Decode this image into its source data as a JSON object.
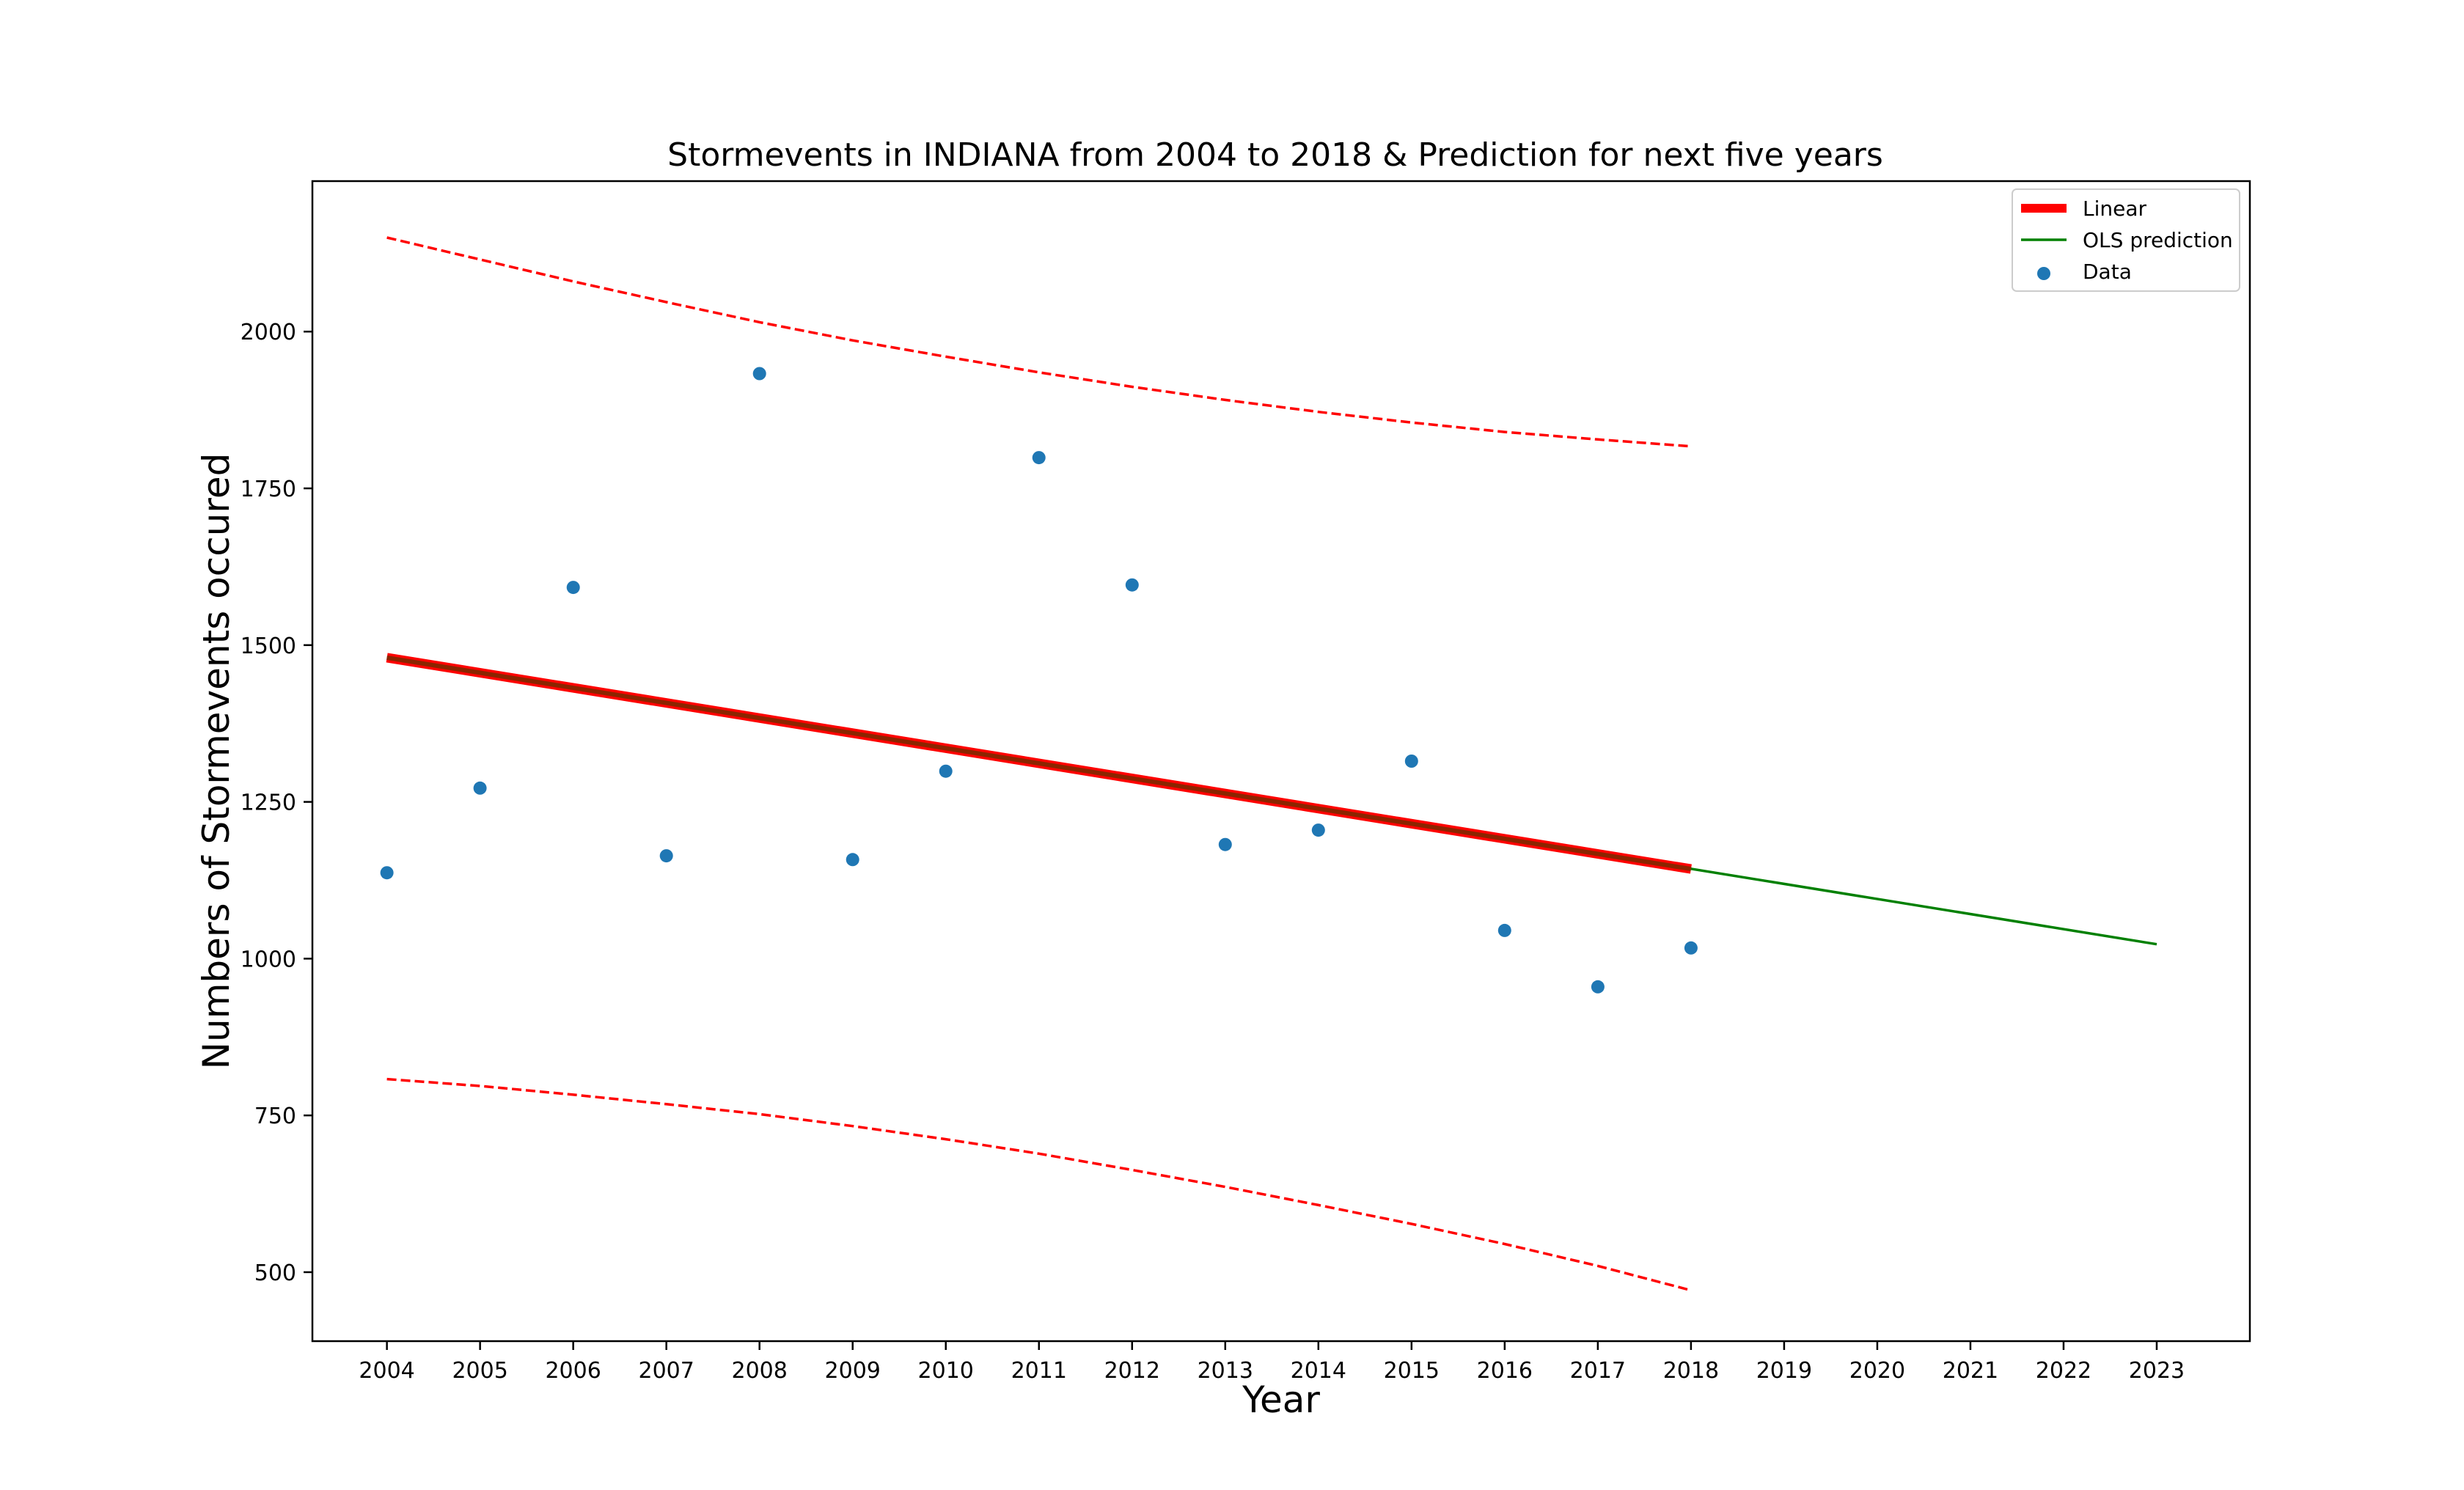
{
  "chart_data": {
    "type": "scatter",
    "title": "Stormevents in INDIANA from 2004 to 2018 & Prediction for next five years",
    "xlabel": "Year",
    "ylabel": "Numbers of Stormevents occured",
    "xlim": [
      2003.2,
      2024.0
    ],
    "ylim": [
      390,
      2240
    ],
    "x_ticks": [
      2004,
      2005,
      2006,
      2007,
      2008,
      2009,
      2010,
      2011,
      2012,
      2013,
      2014,
      2015,
      2016,
      2017,
      2018,
      2019,
      2020,
      2021,
      2022,
      2023
    ],
    "y_ticks": [
      500,
      750,
      1000,
      1250,
      1500,
      1750,
      2000
    ],
    "grid": false,
    "legend_position": "top-right",
    "series": [
      {
        "name": "Data",
        "kind": "scatter",
        "color": "#1f77b4",
        "x": [
          2004,
          2005,
          2006,
          2007,
          2008,
          2009,
          2010,
          2011,
          2012,
          2013,
          2014,
          2015,
          2016,
          2017,
          2018
        ],
        "y": [
          1137,
          1272,
          1592,
          1164,
          1933,
          1158,
          1299,
          1799,
          1596,
          1182,
          1205,
          1315,
          1045,
          955,
          1017
        ]
      },
      {
        "name": "Linear",
        "kind": "line",
        "color": "#ff0000",
        "underlay_color": "#8b2500",
        "x": [
          2004,
          2018
        ],
        "y": [
          1480,
          1143
        ]
      },
      {
        "name": "OLS prediction",
        "kind": "line",
        "color": "#008000",
        "x": [
          2004,
          2023
        ],
        "y": [
          1480,
          1023
        ]
      },
      {
        "name": "",
        "kind": "dashed",
        "color": "#ff0000",
        "x": [
          2004,
          2005,
          2006,
          2007,
          2008,
          2009,
          2010,
          2011,
          2012,
          2013,
          2014,
          2015,
          2016,
          2017,
          2018
        ],
        "y": [
          2150,
          2115,
          2080,
          2047,
          2015,
          1986,
          1960,
          1935,
          1912,
          1891,
          1872,
          1855,
          1840,
          1828,
          1817
        ]
      },
      {
        "name": "",
        "kind": "dashed",
        "color": "#ff0000",
        "x": [
          2004,
          2005,
          2006,
          2007,
          2008,
          2009,
          2010,
          2011,
          2012,
          2013,
          2014,
          2015,
          2016,
          2017,
          2018
        ],
        "y": [
          808,
          797,
          783,
          768,
          752,
          733,
          712,
          689,
          663,
          636,
          607,
          577,
          545,
          510,
          471
        ]
      }
    ]
  }
}
